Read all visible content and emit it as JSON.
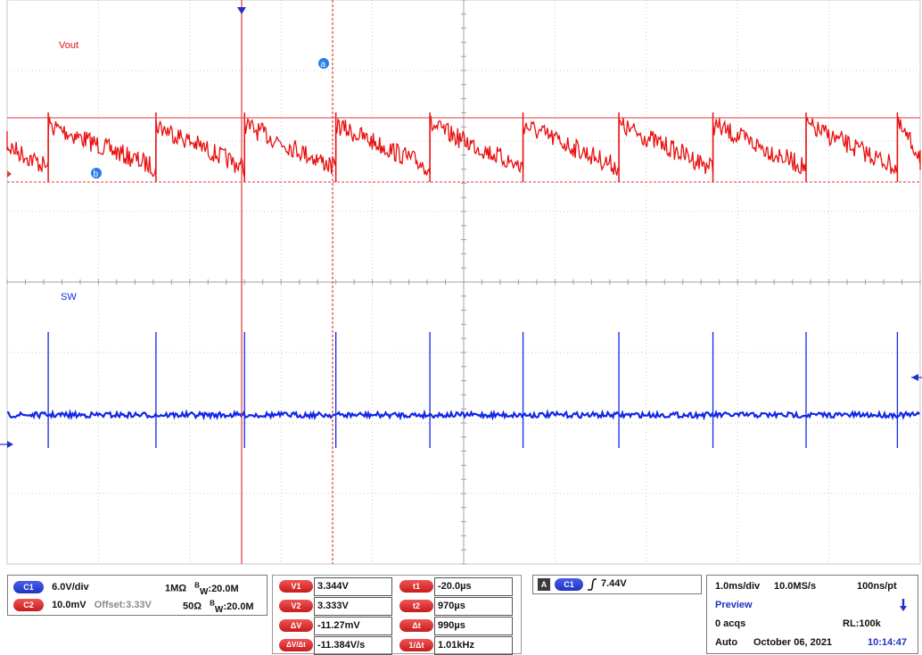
{
  "chart_data": {
    "type": "line",
    "series": [
      {
        "name": "Vout",
        "color": "#e81010"
      },
      {
        "name": "SW",
        "color": "#1228e8"
      }
    ],
    "vout_ripple_period_ms": 1.0,
    "cursors": {
      "a": "a",
      "b": "b",
      "v1": "3.344V",
      "v2": "3.333V"
    },
    "x_divisions": 10,
    "y_divisions": 8,
    "grid": true
  },
  "channels": {
    "c1": {
      "badge": "C1",
      "scale": "6.0V/div",
      "impedance": "1MΩ",
      "bw_label": "B",
      "bw_sub": "W",
      "bw_value": ":20.0M",
      "color": "#1f33c4"
    },
    "c2": {
      "badge": "C2",
      "scale": "10.0mV",
      "offset": "Offset:3.33V",
      "impedance": "50Ω",
      "bw_label": "B",
      "bw_sub": "W",
      "bw_value": ":20.0M",
      "color": "#d01c1c"
    }
  },
  "measurements": {
    "v1": {
      "label": "V1",
      "value": "3.344V"
    },
    "v2": {
      "label": "V2",
      "value": "3.333V"
    },
    "dv": {
      "label": "ΔV",
      "value": "-11.27mV"
    },
    "dvdt": {
      "label": "ΔV/Δt",
      "value": "-11.384V/s"
    },
    "t1": {
      "label": "t1",
      "value": "-20.0µs"
    },
    "t2": {
      "label": "t2",
      "value": "970µs"
    },
    "dt": {
      "label": "Δt",
      "value": "990µs"
    },
    "inv_dt": {
      "label": "1/Δt",
      "value": "1.01kHz"
    }
  },
  "trigger": {
    "mode_badge": "A",
    "channel_badge": "C1",
    "level": "7.44V"
  },
  "acquisition": {
    "timebase": "1.0ms/div",
    "sample_rate": "10.0MS/s",
    "resolution": "100ns/pt",
    "state": "Preview",
    "acqs": "0 acqs",
    "record_length": "RL:100k",
    "trigger_mode": "Auto",
    "date": "October 06, 2021",
    "time": "10:14:47"
  }
}
